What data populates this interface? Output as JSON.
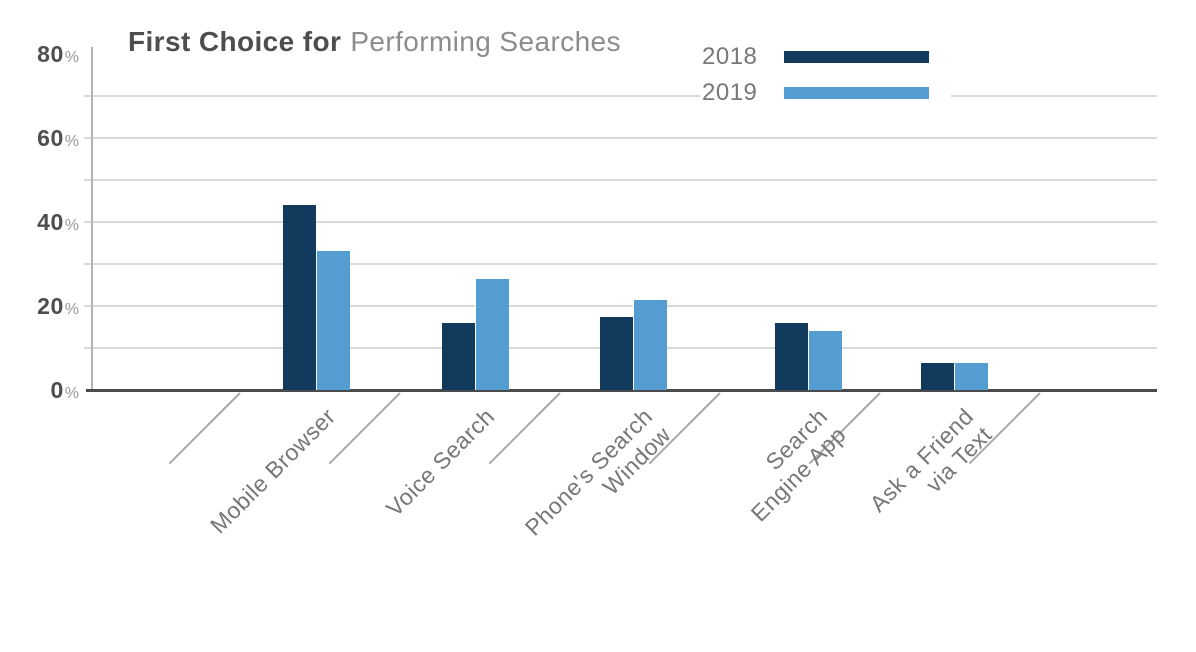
{
  "title": {
    "bold_part": "First Choice for",
    "light_part": "Performing Searches"
  },
  "chart_data": {
    "type": "bar",
    "title": "First Choice for Performing Searches",
    "categories": [
      "Mobile Browser",
      "Voice Search",
      "Phone's Search Window",
      "Search Engine App",
      "Ask a Friend via Text"
    ],
    "category_display_lines": [
      [
        "Mobile Browser"
      ],
      [
        "Voice Search"
      ],
      [
        "Phone's Search",
        "Window"
      ],
      [
        "Search",
        "Engine App"
      ],
      [
        "Ask a Friend",
        "via Text"
      ]
    ],
    "series": [
      {
        "name": "2018",
        "color": "#113a5c",
        "values": [
          44,
          16,
          17.5,
          16,
          6.5
        ]
      },
      {
        "name": "2019",
        "color": "#549dd2",
        "values": [
          33,
          26.5,
          21.5,
          14,
          6.5
        ]
      }
    ],
    "unit": "%",
    "xlabel": "",
    "ylabel": "",
    "ylim": [
      0,
      80
    ],
    "y_tick_labels": [
      80,
      60,
      40,
      20,
      0
    ],
    "gridline_values": [
      70,
      60,
      50,
      40,
      30,
      20,
      10
    ],
    "grid": true,
    "legend_position": "top-right"
  },
  "colors": {
    "bar_2018": "#113a5c",
    "bar_2019": "#549dd2",
    "title_bold": "#4d4e50",
    "title_light": "#8a8c8f",
    "axis_text": "#4d4e50",
    "muted_text": "#76777a",
    "gridline": "#d8d9da",
    "baseline": "#4a4b4d",
    "axis_line": "#b2b3b5",
    "separator": "#a8a9ab"
  }
}
